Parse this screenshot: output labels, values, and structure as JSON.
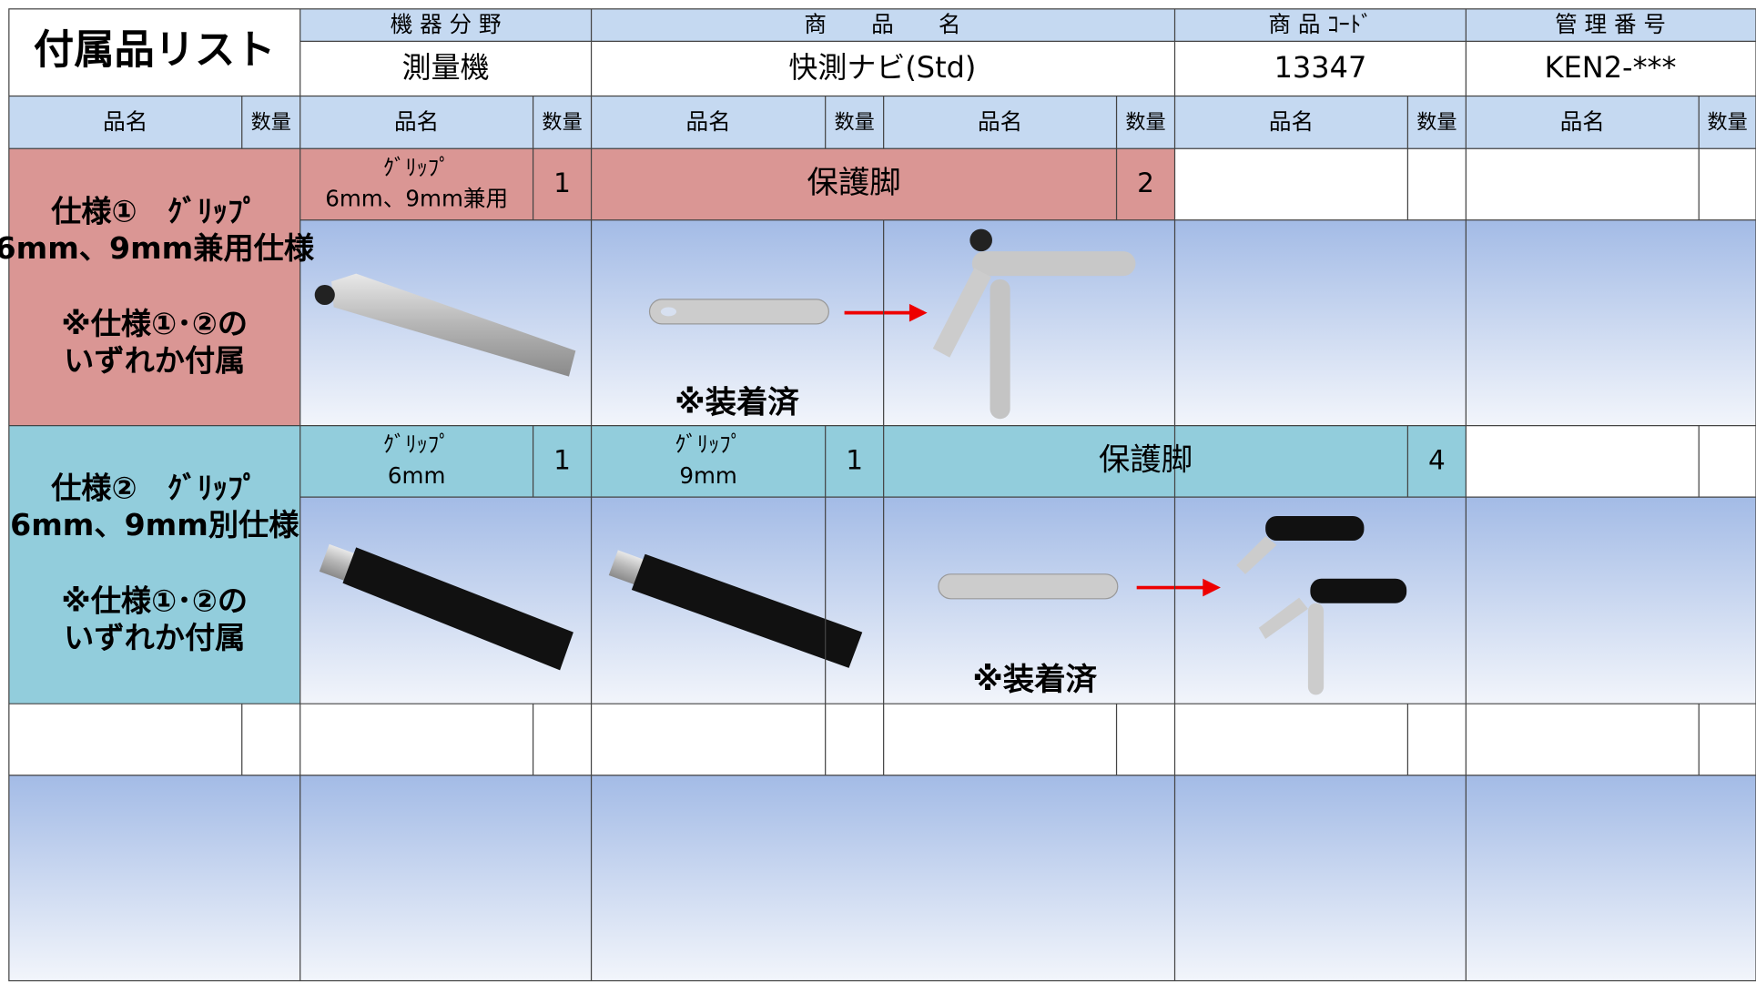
{
  "title": "付属品リスト",
  "header": {
    "labels": [
      "機 器 分 野",
      "商　　品　　名",
      "商 品 ｺｰﾄﾞ",
      "管 理 番 号"
    ],
    "values": [
      "測量機",
      "快測ナビ(Std)",
      "13347",
      "KEN2-***"
    ]
  },
  "columns": [
    "品名",
    "数量",
    "品名",
    "数量",
    "品名",
    "数量",
    "品名",
    "数量",
    "品名",
    "数量",
    "品名",
    "数量"
  ],
  "specs": [
    {
      "label": [
        "仕様①　ｸﾞﾘｯﾌﾟ",
        "6mm、9mm兼用仕様"
      ],
      "note": [
        "※仕様①･②の",
        "いずれか付属"
      ],
      "items": [
        {
          "name": [
            "ｸﾞﾘｯﾌﾟ",
            "6mm、9mm兼用"
          ],
          "qty": 1
        },
        {
          "name": [
            "保護脚"
          ],
          "qty": 2
        }
      ],
      "mounted": "※装着済"
    },
    {
      "label": [
        "仕様②　ｸﾞﾘｯﾌﾟ",
        "6mm、9mm別仕様"
      ],
      "note": [
        "※仕様①･②の",
        "いずれか付属"
      ],
      "items": [
        {
          "name": [
            "ｸﾞﾘｯﾌﾟ",
            "6mm"
          ],
          "qty": 1
        },
        {
          "name": [
            "ｸﾞﾘｯﾌﾟ",
            "9mm"
          ],
          "qty": 1
        },
        {
          "name": [
            "保護脚"
          ],
          "qty": 4
        }
      ],
      "mounted": "※装着済"
    }
  ]
}
